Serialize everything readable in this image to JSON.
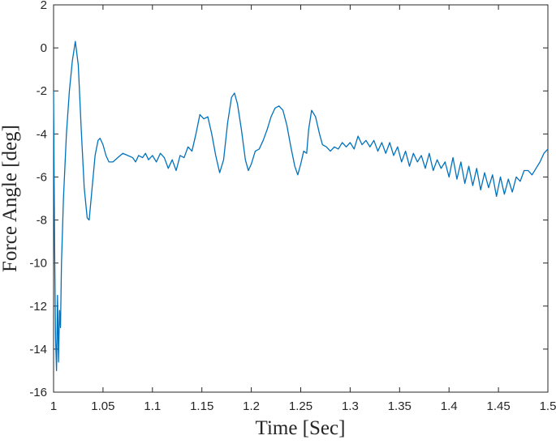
{
  "chart_data": {
    "type": "line",
    "xlabel": "Time [Sec]",
    "ylabel": "Force Angle [deg]",
    "color": "#0072bd",
    "xlim": [
      1,
      1.5
    ],
    "xticks": [
      1,
      1.05,
      1.1,
      1.15,
      1.2,
      1.25,
      1.3,
      1.35,
      1.4,
      1.45,
      1.5
    ],
    "ylim": [
      -16,
      2
    ],
    "yticks": [
      -16,
      -14,
      -12,
      -10,
      -8,
      -6,
      -4,
      -2,
      0,
      2
    ],
    "x": [
      1.0,
      1.001,
      1.002,
      1.003,
      1.004,
      1.005,
      1.006,
      1.007,
      1.008,
      1.01,
      1.013,
      1.016,
      1.019,
      1.022,
      1.025,
      1.028,
      1.031,
      1.034,
      1.036,
      1.039,
      1.042,
      1.045,
      1.047,
      1.05,
      1.053,
      1.056,
      1.06,
      1.065,
      1.07,
      1.075,
      1.08,
      1.083,
      1.086,
      1.09,
      1.093,
      1.096,
      1.1,
      1.104,
      1.108,
      1.112,
      1.116,
      1.12,
      1.124,
      1.128,
      1.132,
      1.136,
      1.14,
      1.144,
      1.148,
      1.152,
      1.156,
      1.16,
      1.164,
      1.168,
      1.172,
      1.176,
      1.18,
      1.183,
      1.186,
      1.19,
      1.194,
      1.197,
      1.2,
      1.204,
      1.208,
      1.212,
      1.216,
      1.22,
      1.224,
      1.228,
      1.232,
      1.236,
      1.24,
      1.244,
      1.247,
      1.25,
      1.253,
      1.256,
      1.258,
      1.261,
      1.265,
      1.269,
      1.272,
      1.276,
      1.28,
      1.284,
      1.288,
      1.292,
      1.296,
      1.3,
      1.304,
      1.308,
      1.312,
      1.316,
      1.32,
      1.324,
      1.328,
      1.332,
      1.336,
      1.34,
      1.344,
      1.348,
      1.352,
      1.356,
      1.36,
      1.364,
      1.368,
      1.372,
      1.376,
      1.38,
      1.384,
      1.388,
      1.392,
      1.396,
      1.4,
      1.404,
      1.408,
      1.412,
      1.416,
      1.42,
      1.424,
      1.428,
      1.432,
      1.436,
      1.44,
      1.444,
      1.448,
      1.452,
      1.456,
      1.46,
      1.464,
      1.468,
      1.472,
      1.476,
      1.48,
      1.484,
      1.488,
      1.492,
      1.496,
      1.5
    ],
    "values": [
      -2.0,
      -9,
      -13.5,
      -15.0,
      -11.5,
      -14.6,
      -12.2,
      -13,
      -10,
      -7,
      -4,
      -2,
      -0.6,
      0.3,
      -0.8,
      -3.8,
      -6.5,
      -7.9,
      -8.0,
      -6.5,
      -5.0,
      -4.3,
      -4.2,
      -4.5,
      -5.0,
      -5.3,
      -5.3,
      -5.1,
      -4.9,
      -5.0,
      -5.1,
      -5.3,
      -5.0,
      -5.1,
      -4.9,
      -5.2,
      -5.0,
      -5.3,
      -4.9,
      -5.1,
      -5.6,
      -5.2,
      -5.7,
      -5.0,
      -5.1,
      -4.6,
      -4.8,
      -4.0,
      -3.1,
      -3.3,
      -3.2,
      -4.0,
      -5.0,
      -5.8,
      -5.2,
      -3.5,
      -2.3,
      -2.1,
      -2.6,
      -3.8,
      -5.2,
      -5.7,
      -5.4,
      -4.8,
      -4.7,
      -4.3,
      -3.8,
      -3.2,
      -2.8,
      -2.7,
      -2.9,
      -3.6,
      -4.6,
      -5.5,
      -5.9,
      -5.4,
      -4.8,
      -4.9,
      -3.8,
      -2.9,
      -3.2,
      -4.0,
      -4.5,
      -4.6,
      -4.8,
      -4.6,
      -4.7,
      -4.4,
      -4.6,
      -4.4,
      -4.7,
      -4.1,
      -4.5,
      -4.3,
      -4.6,
      -4.3,
      -4.8,
      -4.4,
      -4.9,
      -4.4,
      -5.0,
      -4.6,
      -5.3,
      -4.8,
      -5.5,
      -4.9,
      -5.3,
      -5.0,
      -5.6,
      -4.9,
      -5.7,
      -5.2,
      -5.6,
      -5.3,
      -6.0,
      -5.1,
      -6.1,
      -5.3,
      -6.3,
      -5.5,
      -6.4,
      -5.6,
      -6.6,
      -5.8,
      -6.5,
      -5.9,
      -6.9,
      -6.0,
      -6.8,
      -6.1,
      -6.7,
      -6.0,
      -6.2,
      -5.7,
      -5.7,
      -5.9,
      -5.6,
      -5.3,
      -4.9,
      -4.7
    ]
  }
}
